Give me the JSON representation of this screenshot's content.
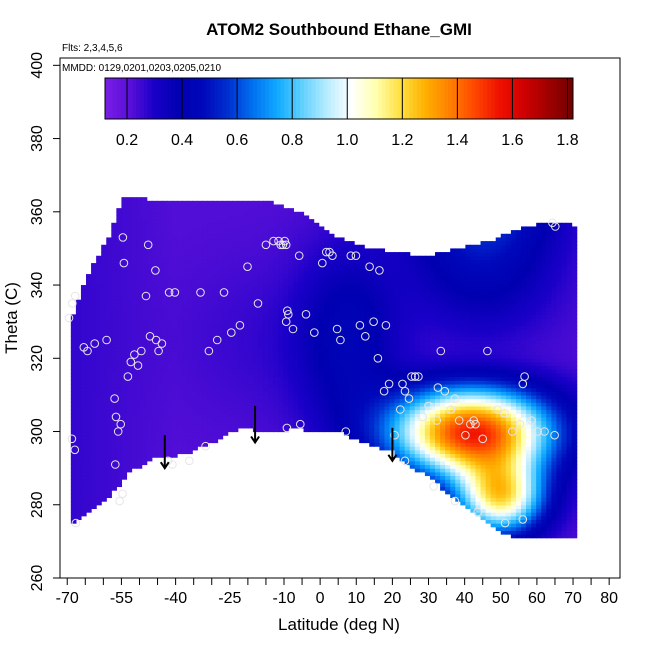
{
  "chart_data": {
    "type": "heatmap",
    "title": "ATOM2 Southbound Ethane_GMI",
    "annotations": [
      "Flts: 2,3,4,5,6",
      "MMDD: 0129,0201,0203,0205,0210"
    ],
    "xlabel": "Latitude (deg N)",
    "ylabel": "Theta (C)",
    "xlim": [
      -72,
      83
    ],
    "ylim": [
      260,
      402
    ],
    "x_ticks": [
      -70,
      -65,
      -60,
      -55,
      -50,
      -45,
      -40,
      -35,
      -30,
      -25,
      -20,
      -15,
      -10,
      -5,
      0,
      5,
      10,
      15,
      20,
      25,
      30,
      35,
      40,
      45,
      50,
      55,
      60,
      65,
      70,
      75,
      80
    ],
    "x_tick_labels": [
      {
        "x": -70,
        "label": "-70"
      },
      {
        "x": -55,
        "label": "-55"
      },
      {
        "x": -40,
        "label": "-40"
      },
      {
        "x": -25,
        "label": "-25"
      },
      {
        "x": -10,
        "label": "-10"
      },
      {
        "x": 0,
        "label": "0"
      },
      {
        "x": 10,
        "label": "10"
      },
      {
        "x": 20,
        "label": "20"
      },
      {
        "x": 30,
        "label": "30"
      },
      {
        "x": 40,
        "label": "40"
      },
      {
        "x": 50,
        "label": "50"
      },
      {
        "x": 60,
        "label": "60"
      },
      {
        "x": 70,
        "label": "70"
      },
      {
        "x": 80,
        "label": "80"
      }
    ],
    "y_ticks": [
      260,
      280,
      300,
      320,
      340,
      360,
      380,
      400
    ],
    "y_tick_labels": [
      "260",
      "280",
      "300",
      "320",
      "340",
      "360",
      "380",
      "400"
    ],
    "colorbar": {
      "range": [
        0.12,
        1.82
      ],
      "ticks": [
        0.2,
        0.4,
        0.6,
        0.8,
        1.0,
        1.2,
        1.4,
        1.6,
        1.8
      ],
      "tick_labels": [
        "0.2",
        "0.4",
        "0.6",
        "0.8",
        "1.0",
        "1.2",
        "1.4",
        "1.6",
        "1.8"
      ],
      "colors": [
        "#7a1ee6",
        "#5a10d8",
        "#1a00c8",
        "#0000b0",
        "#0008bb",
        "#0030d0",
        "#0070f0",
        "#10aaff",
        "#60d0ff",
        "#b8ecff",
        "#ffffff",
        "#ffffb0",
        "#ffe040",
        "#ffb000",
        "#ff8000",
        "#ff4800",
        "#f01000",
        "#d00000",
        "#a00000",
        "#700000"
      ]
    },
    "floor_boundary": [
      [
        -69,
        275
      ],
      [
        -64,
        279
      ],
      [
        -58,
        283
      ],
      [
        -53,
        289
      ],
      [
        -47,
        293
      ],
      [
        -42,
        293
      ],
      [
        -36,
        295
      ],
      [
        -29,
        298
      ],
      [
        -23,
        301
      ],
      [
        -18,
        301
      ],
      [
        -11,
        300
      ],
      [
        -7,
        302
      ],
      [
        -1,
        300
      ],
      [
        6,
        300
      ],
      [
        13,
        297
      ],
      [
        20,
        295
      ],
      [
        25,
        291
      ],
      [
        30,
        288
      ],
      [
        35,
        284
      ],
      [
        40,
        280
      ],
      [
        45,
        277
      ],
      [
        50,
        273
      ],
      [
        56,
        271
      ],
      [
        63,
        271
      ],
      [
        70,
        271
      ]
    ],
    "top_boundary": [
      [
        -69,
        330
      ],
      [
        -66,
        338
      ],
      [
        -63,
        345
      ],
      [
        -60,
        350
      ],
      [
        -58,
        354
      ],
      [
        -56,
        360
      ],
      [
        -54,
        364
      ],
      [
        -48,
        363
      ],
      [
        -40,
        363
      ],
      [
        -30,
        363
      ],
      [
        -21,
        362
      ],
      [
        -15,
        363
      ],
      [
        -10,
        361
      ],
      [
        -5,
        359
      ],
      [
        0,
        356
      ],
      [
        6,
        352
      ],
      [
        12,
        350
      ],
      [
        18,
        349
      ],
      [
        25,
        348
      ],
      [
        32,
        348
      ],
      [
        40,
        350
      ],
      [
        48,
        352
      ],
      [
        56,
        355
      ],
      [
        64,
        357
      ],
      [
        70,
        356
      ]
    ],
    "arrows": [
      {
        "x": -43,
        "y_from": 299,
        "y_to": 290
      },
      {
        "x": -18,
        "y_from": 307,
        "y_to": 297
      },
      {
        "x": 20,
        "y_from": 301,
        "y_to": 292
      }
    ],
    "observations": [
      {
        "x": -69.5,
        "y": 331
      },
      {
        "x": -68.6,
        "y": 335
      },
      {
        "x": -67.8,
        "y": 337
      },
      {
        "x": -67.6,
        "y": 275
      },
      {
        "x": -68.7,
        "y": 298
      },
      {
        "x": -67.9,
        "y": 295
      },
      {
        "x": -65.4,
        "y": 323
      },
      {
        "x": -64.4,
        "y": 322
      },
      {
        "x": -62.4,
        "y": 324
      },
      {
        "x": -59.1,
        "y": 325
      },
      {
        "x": -56.9,
        "y": 309
      },
      {
        "x": -56.5,
        "y": 304
      },
      {
        "x": -55.9,
        "y": 300
      },
      {
        "x": -55.2,
        "y": 302
      },
      {
        "x": -56.7,
        "y": 291
      },
      {
        "x": -54.7,
        "y": 283
      },
      {
        "x": -55.5,
        "y": 281
      },
      {
        "x": -54.3,
        "y": 346
      },
      {
        "x": -54.6,
        "y": 353
      },
      {
        "x": -53.2,
        "y": 315
      },
      {
        "x": -52.4,
        "y": 319
      },
      {
        "x": -51.4,
        "y": 321
      },
      {
        "x": -50.4,
        "y": 318
      },
      {
        "x": -49.5,
        "y": 322
      },
      {
        "x": -47.6,
        "y": 351
      },
      {
        "x": -48.2,
        "y": 337
      },
      {
        "x": -47.1,
        "y": 326
      },
      {
        "x": -45.6,
        "y": 344
      },
      {
        "x": -45.4,
        "y": 325
      },
      {
        "x": -44.7,
        "y": 322
      },
      {
        "x": -43.8,
        "y": 324
      },
      {
        "x": -41.8,
        "y": 338
      },
      {
        "x": -40.2,
        "y": 338
      },
      {
        "x": -42.1,
        "y": 292
      },
      {
        "x": -40.9,
        "y": 291
      },
      {
        "x": -36.2,
        "y": 292
      },
      {
        "x": -31.7,
        "y": 296
      },
      {
        "x": -33.1,
        "y": 338
      },
      {
        "x": -30.8,
        "y": 322
      },
      {
        "x": -28.5,
        "y": 325
      },
      {
        "x": -26.6,
        "y": 338
      },
      {
        "x": -24.6,
        "y": 327
      },
      {
        "x": -22.2,
        "y": 329
      },
      {
        "x": -20.1,
        "y": 345
      },
      {
        "x": -17.2,
        "y": 335
      },
      {
        "x": -15.0,
        "y": 351
      },
      {
        "x": -12.9,
        "y": 352
      },
      {
        "x": -11.5,
        "y": 352
      },
      {
        "x": -10.9,
        "y": 351
      },
      {
        "x": -10.3,
        "y": 351
      },
      {
        "x": -9.8,
        "y": 352
      },
      {
        "x": -9.4,
        "y": 351
      },
      {
        "x": -9.1,
        "y": 333
      },
      {
        "x": -8.8,
        "y": 332
      },
      {
        "x": -9.4,
        "y": 330
      },
      {
        "x": -7.5,
        "y": 328
      },
      {
        "x": -5.8,
        "y": 348
      },
      {
        "x": -3.9,
        "y": 332
      },
      {
        "x": -9.2,
        "y": 301
      },
      {
        "x": -5.5,
        "y": 302
      },
      {
        "x": -1.6,
        "y": 327
      },
      {
        "x": 0.6,
        "y": 346
      },
      {
        "x": 1.7,
        "y": 349
      },
      {
        "x": 2.6,
        "y": 349
      },
      {
        "x": 3.4,
        "y": 348
      },
      {
        "x": 4.7,
        "y": 328
      },
      {
        "x": 5.6,
        "y": 325
      },
      {
        "x": 7.1,
        "y": 300
      },
      {
        "x": 8.5,
        "y": 348
      },
      {
        "x": 9.9,
        "y": 348
      },
      {
        "x": 11.0,
        "y": 329
      },
      {
        "x": 12.5,
        "y": 326
      },
      {
        "x": 13.7,
        "y": 345
      },
      {
        "x": 14.8,
        "y": 330
      },
      {
        "x": 16.4,
        "y": 344
      },
      {
        "x": 16.0,
        "y": 320
      },
      {
        "x": 18.2,
        "y": 329
      },
      {
        "x": 17.7,
        "y": 311
      },
      {
        "x": 19.1,
        "y": 313
      },
      {
        "x": 20.6,
        "y": 299
      },
      {
        "x": 22.2,
        "y": 306
      },
      {
        "x": 22.8,
        "y": 313
      },
      {
        "x": 23.5,
        "y": 311
      },
      {
        "x": 24.6,
        "y": 309
      },
      {
        "x": 25.3,
        "y": 315
      },
      {
        "x": 26.3,
        "y": 315
      },
      {
        "x": 27.2,
        "y": 315
      },
      {
        "x": 23.5,
        "y": 292
      },
      {
        "x": 28.4,
        "y": 304
      },
      {
        "x": 30.0,
        "y": 307
      },
      {
        "x": 32.6,
        "y": 312
      },
      {
        "x": 32.3,
        "y": 303
      },
      {
        "x": 33.4,
        "y": 322
      },
      {
        "x": 34.5,
        "y": 311
      },
      {
        "x": 36.2,
        "y": 306
      },
      {
        "x": 37.3,
        "y": 309
      },
      {
        "x": 38.5,
        "y": 303
      },
      {
        "x": 40.2,
        "y": 299
      },
      {
        "x": 41.6,
        "y": 302
      },
      {
        "x": 42.5,
        "y": 303
      },
      {
        "x": 43.0,
        "y": 302
      },
      {
        "x": 45.0,
        "y": 298
      },
      {
        "x": 46.3,
        "y": 322
      },
      {
        "x": 49.1,
        "y": 306
      },
      {
        "x": 51.0,
        "y": 305
      },
      {
        "x": 53.2,
        "y": 300
      },
      {
        "x": 56.6,
        "y": 315
      },
      {
        "x": 58.5,
        "y": 303
      },
      {
        "x": 60.2,
        "y": 300
      },
      {
        "x": 62.1,
        "y": 300
      },
      {
        "x": 64.9,
        "y": 299
      },
      {
        "x": 31.4,
        "y": 285
      },
      {
        "x": 37.3,
        "y": 281
      },
      {
        "x": 43.6,
        "y": 278
      },
      {
        "x": 51.2,
        "y": 275
      },
      {
        "x": 56.1,
        "y": 276
      },
      {
        "x": 65.1,
        "y": 356
      },
      {
        "x": 64.3,
        "y": 357
      },
      {
        "x": 55.3,
        "y": 302
      },
      {
        "x": 56.1,
        "y": 313
      }
    ]
  }
}
